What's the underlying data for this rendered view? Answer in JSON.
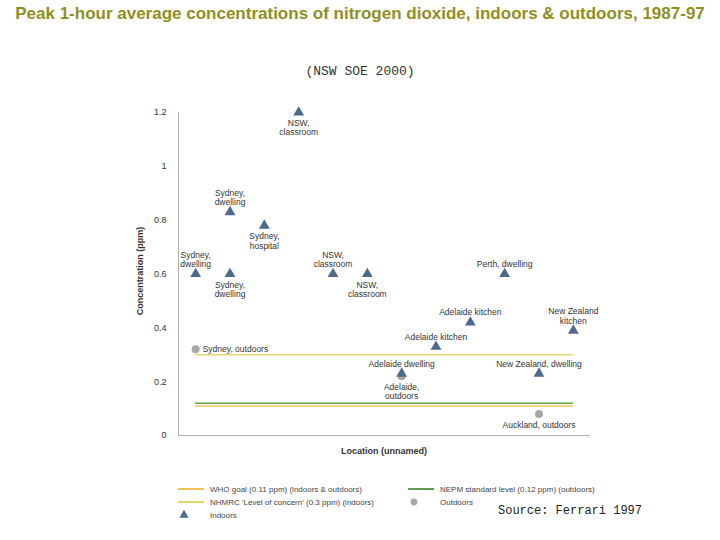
{
  "chart_data": {
    "type": "scatter",
    "title": "Peak 1-hour average concentrations of nitrogen dioxide, indoors & outdoors, 1987-97",
    "subtitle": "(NSW SOE 2000)",
    "source": "Source:  Ferrari 1997",
    "xlabel": "Location (unnamed)",
    "ylabel": "Concentration (ppm)",
    "xlim": [
      0.5,
      12.5
    ],
    "xticks": [],
    "ylim": [
      0,
      1.2
    ],
    "yticks": [
      0,
      0.2,
      0.4,
      0.6,
      0.8,
      1,
      1.2
    ],
    "grid": false,
    "tick_labels": "y",
    "legend": "bottom",
    "series": [
      {
        "name": "Outdoors",
        "color": "#a8a8a8",
        "marker": "circle",
        "x": [
          1,
          7,
          11
        ],
        "values": [
          0.32,
          0.22,
          0.08
        ],
        "labels": [
          "Sydney, outdoors",
          "Adelaide, outdoors",
          "Auckland, outdoors"
        ]
      },
      {
        "name": "Indoors",
        "color": "#4d6a8c",
        "marker": "triangle",
        "x": [
          1,
          2,
          2,
          3,
          4,
          5,
          6,
          7,
          8,
          9,
          10,
          11,
          12
        ],
        "values": [
          0.6,
          0.83,
          0.6,
          0.78,
          1.2,
          0.6,
          0.6,
          0.23,
          0.33,
          0.42,
          0.6,
          0.23,
          0.39
        ],
        "labels": [
          "Sydney, dwelling",
          "Sydney, dwelling",
          "Sydney, dwelling",
          "Sydney, hospital",
          "NSW, classroom",
          "NSW, classroom",
          "NSW, classroom",
          "Adelaide dwelling",
          "Adelaide kitchen",
          "Adelaide kitchen",
          "Perth, dwelling",
          "New Zealand, dwelling",
          "New Zealand kitchen"
        ]
      }
    ],
    "reference_lines": [
      {
        "name": "WHO goal (0.11 ppm) (indoors & outdoors)",
        "value": 0.11,
        "color": "#f0c25a"
      },
      {
        "name": "NEPM standard level (0.12 ppm) (outdoors)",
        "value": 0.12,
        "color": "#5e9e4e"
      },
      {
        "name": "NHMRC 'Level of concern' (0.3 ppm) (indoors)",
        "value": 0.3,
        "color": "#e6d868"
      }
    ]
  }
}
